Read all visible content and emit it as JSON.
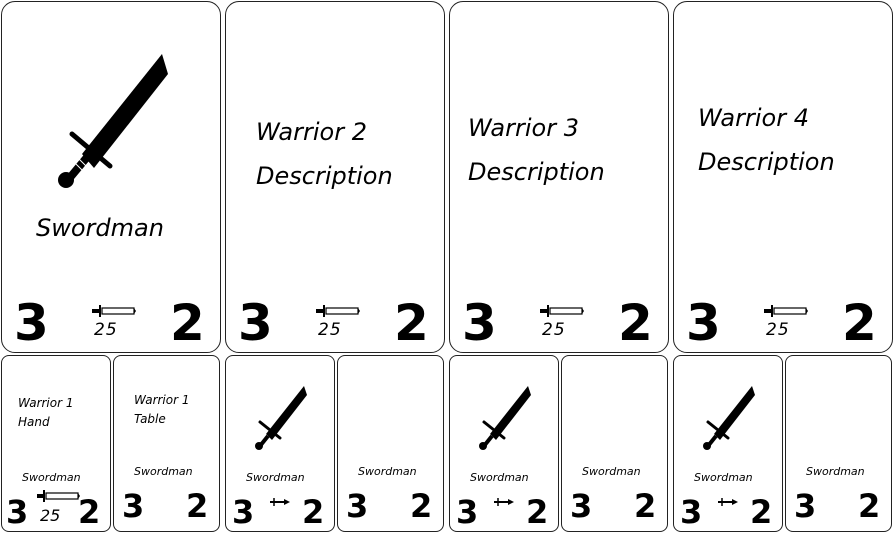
{
  "big_cards": [
    {
      "title": "",
      "caption": "Swordman",
      "left_stat": "3",
      "cost": "25",
      "right_stat": "2"
    },
    {
      "title_line1": "Warrior 2",
      "title_line2": "Description",
      "left_stat": "3",
      "cost": "25",
      "right_stat": "2"
    },
    {
      "title_line1": "Warrior 3",
      "title_line2": "Description",
      "left_stat": "3",
      "cost": "25",
      "right_stat": "2"
    },
    {
      "title_line1": "Warrior 4",
      "title_line2": "Description",
      "left_stat": "3",
      "cost": "25",
      "right_stat": "2"
    }
  ],
  "small_cards": [
    {
      "label_line1": "Warrior 1",
      "label_line2": "Hand",
      "caption": "Swordman",
      "left_stat": "3",
      "cost": "25",
      "right_stat": "2"
    },
    {
      "label_line1": "Warrior 1",
      "label_line2": "Table",
      "caption": "Swordman",
      "left_stat": "3",
      "right_stat": "2"
    },
    {
      "caption": "Swordman",
      "left_stat": "3",
      "right_stat": "2"
    },
    {
      "caption": "Swordman",
      "left_stat": "3",
      "right_stat": "2"
    },
    {
      "caption": "Swordman",
      "left_stat": "3",
      "right_stat": "2"
    },
    {
      "caption": "Swordman",
      "left_stat": "3",
      "right_stat": "2"
    },
    {
      "caption": "Swordman",
      "left_stat": "3",
      "right_stat": "2"
    },
    {
      "caption": "Swordman",
      "left_stat": "3",
      "right_stat": "2"
    }
  ],
  "icons": {
    "sword": "sword-icon",
    "mini_sword": "mini-sword-icon"
  }
}
